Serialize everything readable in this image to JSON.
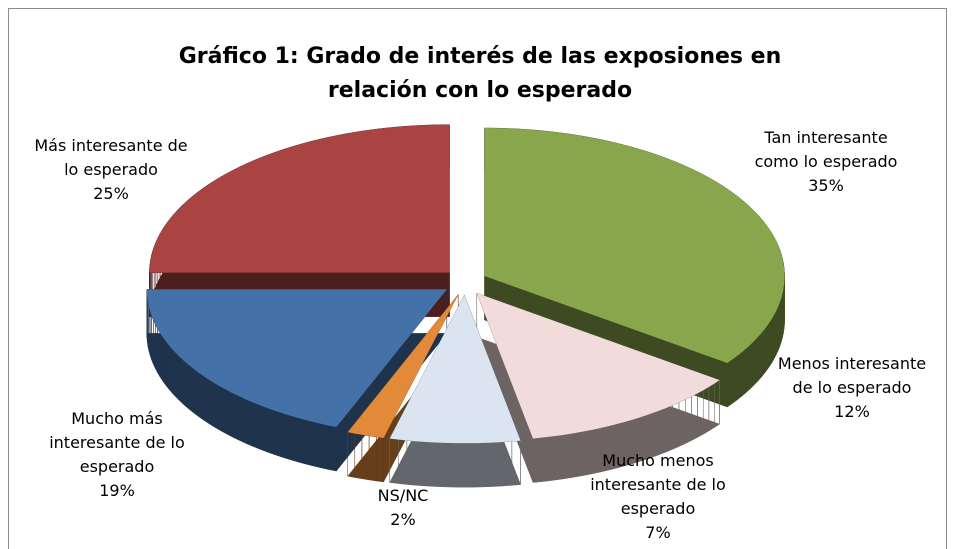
{
  "chart_data": {
    "type": "pie",
    "title": "Gráfico 1: Grado de interés de las exposiones en relación con lo esperado",
    "categories": [
      "Tan interesante como lo esperado",
      "Menos interesante de lo esperado",
      "Mucho menos interesante de lo esperado",
      "NS/NC",
      "Mucho más interesante de lo esperado",
      "Más interesante de lo esperado"
    ],
    "values": [
      35,
      12,
      7,
      2,
      19,
      25
    ],
    "value_labels": [
      "35%",
      "12%",
      "7%",
      "2%",
      "19%",
      "25%"
    ],
    "colors": [
      "#8aa64c",
      "#f2dcdb",
      "#dbe5f1",
      "#e3893a",
      "#4472a8",
      "#a94442"
    ],
    "exploded": true,
    "three_d": true
  }
}
